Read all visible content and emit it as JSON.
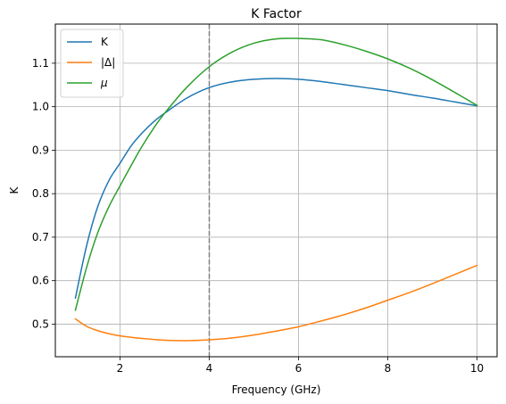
{
  "chart_data": {
    "type": "line",
    "title": "K Factor",
    "xlabel": "Frequency (GHz)",
    "ylabel": "K",
    "xlim": [
      0.55,
      10.45
    ],
    "ylim": [
      0.425,
      1.19
    ],
    "xticks": [
      2,
      4,
      6,
      8,
      10
    ],
    "xtick_labels": [
      "2",
      "4",
      "6",
      "8",
      "10"
    ],
    "yticks": [
      0.5,
      0.6,
      0.7,
      0.8,
      0.9,
      1.0,
      1.1
    ],
    "ytick_labels": [
      "0.5",
      "0.6",
      "0.7",
      "0.8",
      "0.9",
      "1.0",
      "1.1"
    ],
    "grid": true,
    "legend_position": "upper-left",
    "vline": {
      "x": 4,
      "color": "#808080",
      "style": "dashed"
    },
    "series": [
      {
        "name": "K",
        "color": "#1f77b4",
        "x": [
          1.0,
          1.25,
          1.5,
          1.75,
          2.0,
          2.25,
          2.5,
          2.75,
          3.0,
          3.5,
          4.0,
          4.5,
          5.0,
          5.5,
          6.0,
          6.5,
          7.0,
          7.5,
          8.0,
          8.5,
          9.0,
          9.5,
          10.0
        ],
        "values": [
          0.56,
          0.68,
          0.77,
          0.83,
          0.87,
          0.91,
          0.94,
          0.965,
          0.985,
          1.02,
          1.044,
          1.057,
          1.063,
          1.065,
          1.063,
          1.058,
          1.051,
          1.044,
          1.037,
          1.028,
          1.02,
          1.011,
          1.002
        ]
      },
      {
        "name": "|Δ|",
        "color": "#ff7f0e",
        "x": [
          1.0,
          1.25,
          1.5,
          1.75,
          2.0,
          2.5,
          3.0,
          3.5,
          4.0,
          4.5,
          5.0,
          5.5,
          6.0,
          6.5,
          7.0,
          7.5,
          8.0,
          8.5,
          9.0,
          9.5,
          10.0
        ],
        "values": [
          0.512,
          0.495,
          0.485,
          0.478,
          0.473,
          0.467,
          0.463,
          0.462,
          0.464,
          0.468,
          0.475,
          0.484,
          0.494,
          0.507,
          0.521,
          0.537,
          0.555,
          0.573,
          0.593,
          0.614,
          0.635
        ]
      },
      {
        "name": "μ",
        "color": "#2ca02c",
        "x": [
          1.0,
          1.25,
          1.5,
          1.75,
          2.0,
          2.25,
          2.5,
          2.75,
          3.0,
          3.5,
          4.0,
          4.5,
          5.0,
          5.5,
          6.0,
          6.5,
          7.0,
          7.5,
          8.0,
          8.5,
          9.0,
          9.5,
          10.0
        ],
        "values": [
          0.532,
          0.63,
          0.71,
          0.77,
          0.818,
          0.865,
          0.91,
          0.95,
          0.985,
          1.045,
          1.092,
          1.125,
          1.146,
          1.156,
          1.157,
          1.154,
          1.143,
          1.128,
          1.11,
          1.088,
          1.062,
          1.033,
          1.003
        ]
      }
    ]
  }
}
